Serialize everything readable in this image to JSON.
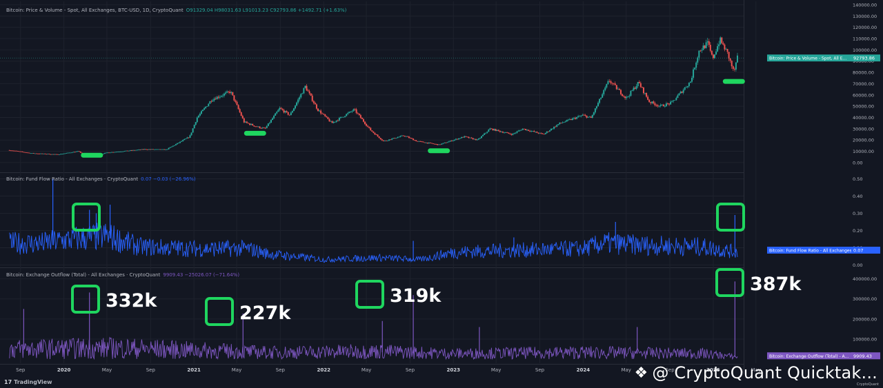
{
  "colors": {
    "background": "#131722",
    "up": "#26a69a",
    "down": "#ef5350",
    "price_line": "#26a69a",
    "flow_ratio": "#2962ff",
    "outflow": "#7e57c2",
    "highlight": "#1fd65f",
    "grid": "#1e222d",
    "text": "#b2b5be"
  },
  "legends": {
    "price": {
      "title": "Bitcoin: Price & Volume - Spot, All Exchanges, BTC-USD, 1D, CryptoQuant",
      "values": "O91329.04  H98031.63  L91013.23  C92793.86  +1492.71 (+1.63%)"
    },
    "flow": {
      "title": "Bitcoin: Fund Flow Ratio - All Exchanges · CryptoQuant",
      "values": "0.07  −0.03 (−26.96%)"
    },
    "outflow": {
      "title": "Bitcoin: Exchange Outflow (Total) - All Exchanges · CryptoQuant",
      "values": "9909.43  −25026.07 (−71.64%)"
    }
  },
  "badges": {
    "price": {
      "label": "Bitcoin: Price & Volume - Spot, All E...",
      "value": "92793.86"
    },
    "flow": {
      "label": "Bitcoin: Fund Flow Ratio - All Exchanges",
      "value": "0.07"
    },
    "outflow": {
      "label": "Bitcoin: Exchange Outflow (Total) - A...",
      "value": "9909.43"
    }
  },
  "annotations": [
    "332k",
    "227k",
    "319k",
    "387k"
  ],
  "footer": {
    "tradingview": "TradingView",
    "watermark": "@ CryptoQuant Quicktak...",
    "small": "CryptoQuant"
  },
  "chart_data": [
    {
      "type": "line",
      "title": "Bitcoin: Price & Volume - Spot, All Exchanges, BTC-USD, 1D, CryptoQuant",
      "style": "candlestick",
      "x_start": "2019-08-01",
      "x_end": "2025-03-10",
      "ylim": [
        -8000,
        143000
      ],
      "y_ticks": [
        "0.00",
        "10000.00",
        "20000.00",
        "30000.00",
        "40000.00",
        "50000.00",
        "60000.00",
        "70000.00",
        "80000.00",
        "90000.00",
        "100000.00",
        "110000.00",
        "120000.00",
        "130000.00",
        "140000.00"
      ],
      "points": [
        [
          "2019-08-01",
          11000
        ],
        [
          "2019-10-01",
          8300
        ],
        [
          "2019-12-15",
          7200
        ],
        [
          "2020-02-10",
          10000
        ],
        [
          "2020-03-13",
          5000
        ],
        [
          "2020-05-01",
          8800
        ],
        [
          "2020-08-15",
          11800
        ],
        [
          "2020-10-15",
          11500
        ],
        [
          "2020-12-20",
          23000
        ],
        [
          "2021-01-10",
          40000
        ],
        [
          "2021-02-20",
          56000
        ],
        [
          "2021-04-14",
          63000
        ],
        [
          "2021-05-22",
          36000
        ],
        [
          "2021-06-25",
          32000
        ],
        [
          "2021-07-20",
          30000
        ],
        [
          "2021-08-30",
          48000
        ],
        [
          "2021-09-28",
          42000
        ],
        [
          "2021-11-10",
          67500
        ],
        [
          "2021-12-15",
          47000
        ],
        [
          "2022-01-24",
          35000
        ],
        [
          "2022-03-28",
          47000
        ],
        [
          "2022-05-12",
          29000
        ],
        [
          "2022-06-18",
          19000
        ],
        [
          "2022-08-15",
          24000
        ],
        [
          "2022-09-20",
          19000
        ],
        [
          "2022-11-21",
          15800
        ],
        [
          "2023-01-31",
          23000
        ],
        [
          "2023-03-10",
          20000
        ],
        [
          "2023-04-14",
          30000
        ],
        [
          "2023-06-15",
          25000
        ],
        [
          "2023-07-15",
          30000
        ],
        [
          "2023-09-11",
          25000
        ],
        [
          "2023-10-25",
          34500
        ],
        [
          "2023-12-31",
          42000
        ],
        [
          "2024-01-23",
          39500
        ],
        [
          "2024-03-14",
          73000
        ],
        [
          "2024-05-01",
          57000
        ],
        [
          "2024-06-05",
          71000
        ],
        [
          "2024-07-05",
          54000
        ],
        [
          "2024-08-05",
          50000
        ],
        [
          "2024-09-06",
          53000
        ],
        [
          "2024-10-29",
          72000
        ],
        [
          "2024-11-22",
          99000
        ],
        [
          "2024-12-17",
          106000
        ],
        [
          "2024-12-30",
          92000
        ],
        [
          "2025-01-20",
          109000
        ],
        [
          "2025-02-10",
          97000
        ],
        [
          "2025-02-28",
          80000
        ],
        [
          "2025-03-10",
          92793.86
        ]
      ],
      "last_value": 92793.86
    },
    {
      "type": "area",
      "title": "Bitcoin: Fund Flow Ratio - All Exchanges · CryptoQuant",
      "ylim": [
        -0.01,
        0.53
      ],
      "y_ticks": [
        "0.00",
        "0.10",
        "0.20",
        "0.30",
        "0.40",
        "0.50"
      ],
      "segments": [
        [
          "2019-08-01",
          0.12
        ],
        [
          "2019-11-01",
          0.12
        ],
        [
          "2020-01-15",
          0.14
        ],
        [
          "2020-05-01",
          0.16
        ],
        [
          "2020-08-01",
          0.1
        ],
        [
          "2021-01-01",
          0.09
        ],
        [
          "2021-06-01",
          0.09
        ],
        [
          "2021-08-01",
          0.06
        ],
        [
          "2022-01-01",
          0.03
        ],
        [
          "2022-06-01",
          0.04
        ],
        [
          "2022-10-01",
          0.03
        ],
        [
          "2023-01-01",
          0.07
        ],
        [
          "2023-06-01",
          0.08
        ],
        [
          "2024-01-01",
          0.09
        ],
        [
          "2024-03-01",
          0.12
        ],
        [
          "2024-06-01",
          0.11
        ],
        [
          "2024-12-01",
          0.1
        ],
        [
          "2025-03-10",
          0.07
        ]
      ],
      "spikes": [
        [
          "2019-12-01",
          0.5
        ],
        [
          "2020-03-13",
          0.32
        ],
        [
          "2020-04-01",
          0.3
        ],
        [
          "2020-05-10",
          0.35
        ],
        [
          "2022-09-10",
          0.14
        ],
        [
          "2023-06-20",
          0.16
        ],
        [
          "2024-04-01",
          0.25
        ],
        [
          "2025-03-03",
          0.29
        ]
      ],
      "last_value": 0.07
    },
    {
      "type": "area",
      "title": "Bitcoin: Exchange Outflow (Total) - All Exchanges · CryptoQuant",
      "ylim": [
        -20000,
        450000
      ],
      "y_ticks": [
        "100000.00",
        "200000.00",
        "300000.00",
        "400000.00"
      ],
      "segments": [
        [
          "2019-08-01",
          45000
        ],
        [
          "2020-06-01",
          50000
        ],
        [
          "2021-01-01",
          40000
        ],
        [
          "2021-08-01",
          30000
        ],
        [
          "2022-06-01",
          35000
        ],
        [
          "2023-01-01",
          25000
        ],
        [
          "2024-01-01",
          30000
        ],
        [
          "2024-12-01",
          25000
        ],
        [
          "2025-03-10",
          9909.43
        ]
      ],
      "spikes": [
        [
          "2019-09-10",
          250000
        ],
        [
          "2020-03-13",
          332000
        ],
        [
          "2021-05-19",
          227000
        ],
        [
          "2022-06-15",
          190000
        ],
        [
          "2022-09-10",
          319000
        ],
        [
          "2023-03-15",
          160000
        ],
        [
          "2024-06-01",
          160000
        ],
        [
          "2025-03-03",
          387000
        ]
      ],
      "last_value": 9909.43
    }
  ],
  "time_axis": [
    "Sep",
    "2020",
    "May",
    "Sep",
    "2021",
    "May",
    "Sep",
    "2022",
    "May",
    "Sep",
    "2023",
    "May",
    "Sep",
    "2024",
    "May",
    "Sep",
    "2025",
    "May"
  ]
}
